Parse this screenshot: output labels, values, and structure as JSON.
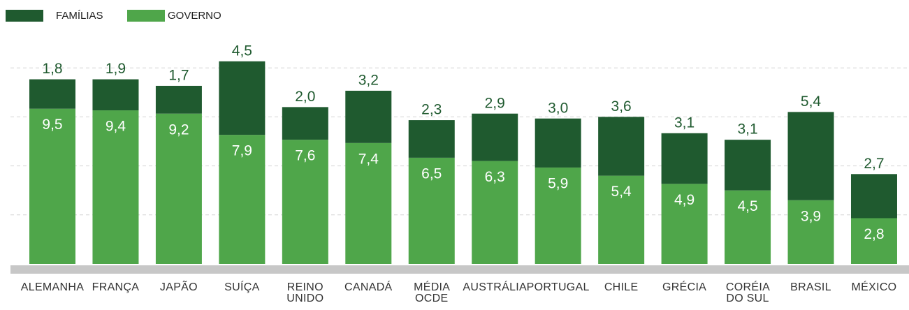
{
  "chart_data": {
    "type": "stacked_bar",
    "categories": [
      "ALEMANHA",
      "FRANÇA",
      "JAPÃO",
      "SUÍÇA",
      "REINO UNIDO",
      "CANADÁ",
      "MÉDIA OCDE",
      "AUSTRÁLIA",
      "PORTUGAL",
      "CHILE",
      "GRÉCIA",
      "CORÉIA DO SUL",
      "BRASIL",
      "MÉXICO"
    ],
    "series": [
      {
        "name": "FAMÍLIAS",
        "color": "#1f5a2f",
        "values": [
          1.8,
          1.9,
          1.7,
          4.5,
          2.0,
          3.2,
          2.3,
          2.9,
          3.0,
          3.6,
          3.1,
          3.1,
          5.4,
          2.7
        ],
        "value_labels": [
          "1,8",
          "1,9",
          "1,7",
          "4,5",
          "2,0",
          "3,2",
          "2,3",
          "2,9",
          "3,0",
          "3,6",
          "3,1",
          "3,1",
          "5,4",
          "2,7"
        ]
      },
      {
        "name": "GOVERNO",
        "color": "#4fa64a",
        "values": [
          9.5,
          9.4,
          9.2,
          7.9,
          7.6,
          7.4,
          6.5,
          6.3,
          5.9,
          5.4,
          4.9,
          4.5,
          3.9,
          2.8
        ],
        "value_labels": [
          "9,5",
          "9,4",
          "9,2",
          "7,9",
          "7,6",
          "7,4",
          "6,5",
          "6,3",
          "5,9",
          "5,4",
          "4,9",
          "4,5",
          "3,9",
          "2,8"
        ]
      }
    ],
    "ylim": [
      0,
      14
    ],
    "yticks": [
      3,
      6,
      9,
      12
    ],
    "grid": true,
    "legend": "top-left"
  }
}
